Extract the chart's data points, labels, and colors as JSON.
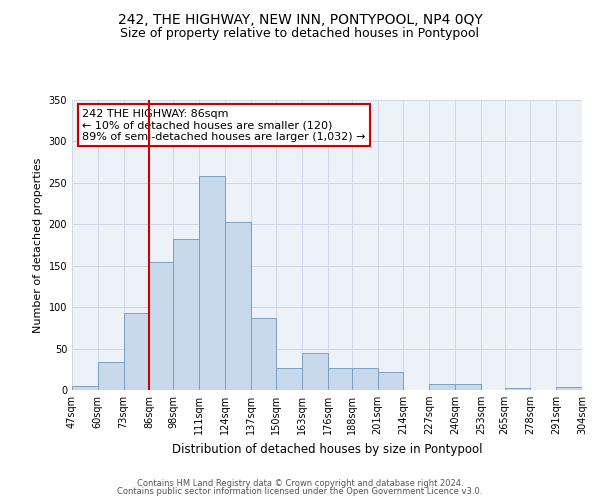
{
  "title": "242, THE HIGHWAY, NEW INN, PONTYPOOL, NP4 0QY",
  "subtitle": "Size of property relative to detached houses in Pontypool",
  "xlabel": "Distribution of detached houses by size in Pontypool",
  "ylabel": "Number of detached properties",
  "footer_line1": "Contains HM Land Registry data © Crown copyright and database right 2024.",
  "footer_line2": "Contains public sector information licensed under the Open Government Licence v3.0.",
  "bins": [
    47,
    60,
    73,
    86,
    98,
    111,
    124,
    137,
    150,
    163,
    176,
    188,
    201,
    214,
    227,
    240,
    253,
    265,
    278,
    291,
    304
  ],
  "bin_labels": [
    "47sqm",
    "60sqm",
    "73sqm",
    "86sqm",
    "98sqm",
    "111sqm",
    "124sqm",
    "137sqm",
    "150sqm",
    "163sqm",
    "176sqm",
    "188sqm",
    "201sqm",
    "214sqm",
    "227sqm",
    "240sqm",
    "253sqm",
    "265sqm",
    "278sqm",
    "291sqm",
    "304sqm"
  ],
  "bar_heights": [
    5,
    34,
    93,
    155,
    182,
    258,
    203,
    87,
    27,
    45,
    27,
    27,
    22,
    0,
    7,
    7,
    0,
    3,
    0,
    4,
    2
  ],
  "bar_color": "#c9d9ec",
  "bar_edge_color": "#7aa0c4",
  "grid_color": "#d0d8e8",
  "background_color": "#edf1f8",
  "vline_x": 86,
  "vline_color": "#cc0000",
  "annotation_line1": "242 THE HIGHWAY: 86sqm",
  "annotation_line2": "← 10% of detached houses are smaller (120)",
  "annotation_line3": "89% of semi-detached houses are larger (1,032) →",
  "ylim": [
    0,
    350
  ],
  "yticks": [
    0,
    50,
    100,
    150,
    200,
    250,
    300,
    350
  ],
  "title_fontsize": 10,
  "subtitle_fontsize": 9,
  "ylabel_fontsize": 8,
  "xlabel_fontsize": 8.5,
  "tick_fontsize": 7,
  "annotation_fontsize": 8,
  "footer_fontsize": 6
}
